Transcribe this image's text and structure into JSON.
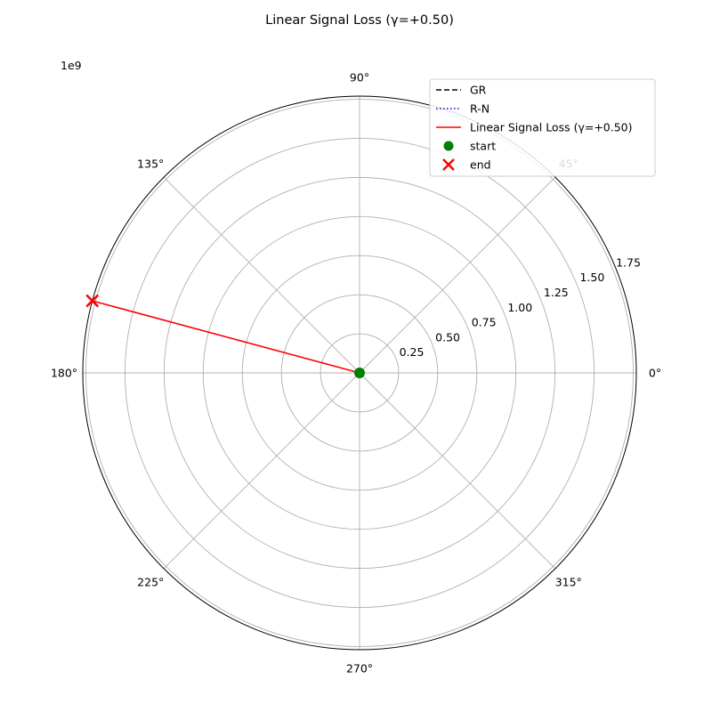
{
  "chart_data": {
    "type": "line",
    "projection": "polar",
    "title": "Linear Signal Loss (γ=+0.50)",
    "r_multiplier": "1e9",
    "r_scale": 1000000000,
    "r_lim": [
      0,
      1.77
    ],
    "r_ticks": [
      "0.25",
      "0.50",
      "0.75",
      "1.00",
      "1.25",
      "1.50",
      "1.75"
    ],
    "r_tick_values": [
      0.25,
      0.5,
      0.75,
      1.0,
      1.25,
      1.5,
      1.75
    ],
    "theta_ticks": [
      "0°",
      "45°",
      "90°",
      "135°",
      "180°",
      "225°",
      "270°",
      "315°"
    ],
    "theta_tick_values": [
      0,
      45,
      90,
      135,
      180,
      225,
      270,
      315
    ],
    "grid": true,
    "legend_position": "top-right",
    "series": [
      {
        "name": "GR",
        "color": "#000000",
        "style": "dashed",
        "points": []
      },
      {
        "name": "R-N",
        "color": "#0000bf",
        "style": "dotted",
        "points": []
      },
      {
        "name": "Linear Signal Loss (γ=+0.50)",
        "color": "#ff0000",
        "style": "solid",
        "points": [
          {
            "theta": 0,
            "r": 0
          },
          {
            "theta": 164.9,
            "r": 1.77
          }
        ]
      }
    ],
    "markers": [
      {
        "name": "start",
        "color": "#008000",
        "shape": "circle",
        "theta": 0,
        "r": 0
      },
      {
        "name": "end",
        "color": "#ff0000",
        "shape": "x",
        "theta": 164.9,
        "r": 1.77
      }
    ],
    "legend": [
      "GR",
      "R-N",
      "Linear Signal Loss (γ=+0.50)",
      "start",
      "end"
    ]
  }
}
